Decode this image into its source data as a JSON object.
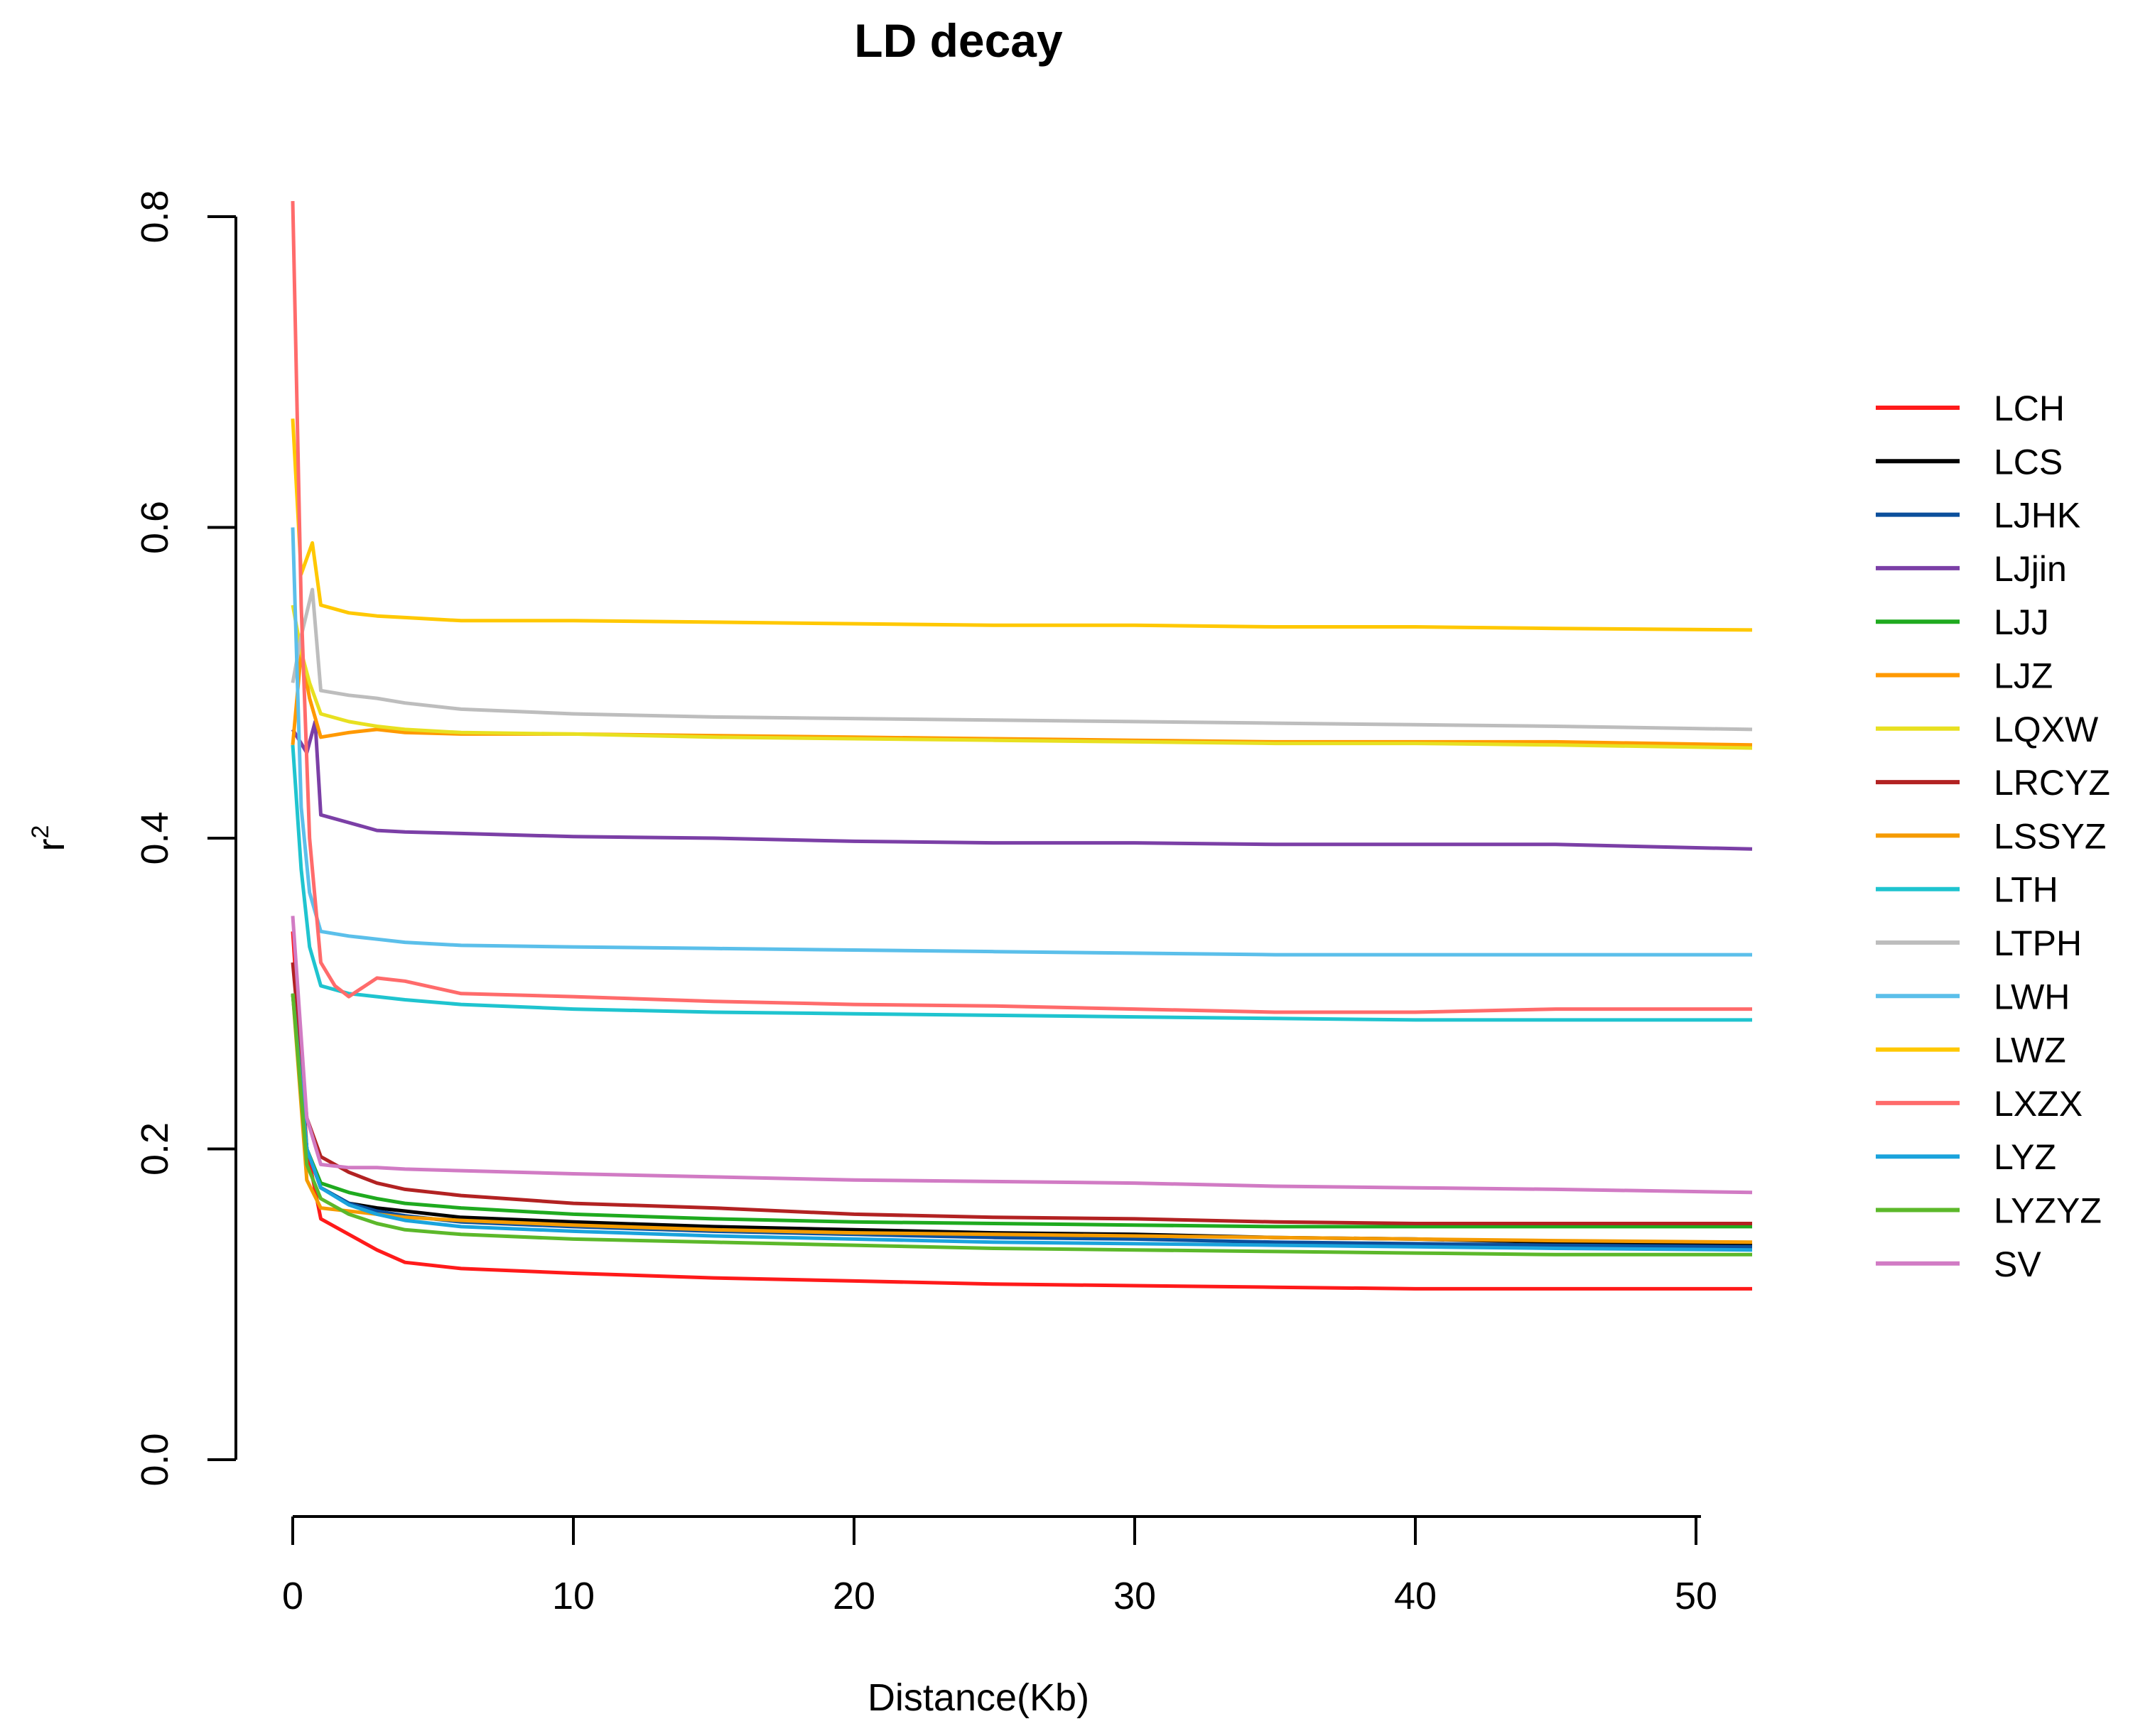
{
  "chart_data": {
    "type": "line",
    "title": "LD decay",
    "xlabel": "Distance(Kb)",
    "ylabel": "r",
    "ylabel_superscript": "2",
    "xlim": [
      0,
      52
    ],
    "ylim": [
      0,
      0.8
    ],
    "xticks": [
      0,
      10,
      20,
      30,
      40,
      50
    ],
    "yticks": [
      0.0,
      0.2,
      0.4,
      0.6,
      0.8
    ],
    "xtick_labels": [
      "0",
      "10",
      "20",
      "30",
      "40",
      "50"
    ],
    "ytick_labels": [
      "0.0",
      "0.2",
      "0.4",
      "0.6",
      "0.8"
    ],
    "legend_position": "right",
    "series": [
      {
        "name": "LCH",
        "color": "#ff1a1a",
        "x": [
          0,
          0.5,
          1,
          2,
          3,
          4,
          6,
          10,
          15,
          20,
          25,
          30,
          35,
          40,
          45,
          52
        ],
        "y": [
          0.34,
          0.2,
          0.155,
          0.145,
          0.135,
          0.127,
          0.123,
          0.12,
          0.117,
          0.115,
          0.113,
          0.112,
          0.111,
          0.11,
          0.11,
          0.11
        ]
      },
      {
        "name": "LCS",
        "color": "#000000",
        "x": [
          0,
          0.5,
          1,
          2,
          3,
          4,
          6,
          10,
          15,
          20,
          25,
          30,
          35,
          40,
          45,
          52
        ],
        "y": [
          0.3,
          0.2,
          0.175,
          0.165,
          0.162,
          0.16,
          0.156,
          0.153,
          0.15,
          0.148,
          0.146,
          0.145,
          0.143,
          0.142,
          0.14,
          0.138
        ]
      },
      {
        "name": "LJHK",
        "color": "#0b4f9c",
        "x": [
          0,
          0.5,
          1,
          2,
          3,
          4,
          6,
          10,
          15,
          20,
          25,
          30,
          35,
          40,
          45,
          52
        ],
        "y": [
          0.3,
          0.2,
          0.175,
          0.165,
          0.16,
          0.157,
          0.153,
          0.15,
          0.147,
          0.145,
          0.143,
          0.142,
          0.14,
          0.139,
          0.138,
          0.137
        ]
      },
      {
        "name": "LJjin",
        "color": "#7b3fa6",
        "x": [
          0,
          0.5,
          0.8,
          1,
          2,
          3,
          4,
          6,
          10,
          15,
          20,
          25,
          30,
          35,
          40,
          45,
          52
        ],
        "y": [
          0.47,
          0.455,
          0.475,
          0.415,
          0.41,
          0.405,
          0.404,
          0.403,
          0.401,
          0.4,
          0.398,
          0.397,
          0.397,
          0.396,
          0.396,
          0.396,
          0.393
        ]
      },
      {
        "name": "LJJ",
        "color": "#1faa1f",
        "x": [
          0,
          0.5,
          1,
          2,
          3,
          4,
          6,
          10,
          15,
          20,
          25,
          30,
          35,
          40,
          45,
          52
        ],
        "y": [
          0.3,
          0.2,
          0.178,
          0.172,
          0.168,
          0.165,
          0.162,
          0.158,
          0.155,
          0.153,
          0.152,
          0.151,
          0.15,
          0.15,
          0.15,
          0.15
        ]
      },
      {
        "name": "LJZ",
        "color": "#ff9900",
        "x": [
          0,
          0.3,
          0.6,
          1,
          2,
          3,
          4,
          6,
          10,
          15,
          20,
          25,
          30,
          35,
          40,
          45,
          52
        ],
        "y": [
          0.46,
          0.52,
          0.49,
          0.465,
          0.468,
          0.47,
          0.468,
          0.467,
          0.467,
          0.466,
          0.465,
          0.464,
          0.463,
          0.462,
          0.462,
          0.462,
          0.46
        ]
      },
      {
        "name": "LQXW",
        "color": "#e8e020",
        "x": [
          0,
          0.3,
          0.6,
          1,
          2,
          3,
          4,
          6,
          10,
          15,
          20,
          25,
          30,
          35,
          40,
          45,
          52
        ],
        "y": [
          0.55,
          0.52,
          0.5,
          0.48,
          0.475,
          0.472,
          0.47,
          0.468,
          0.467,
          0.465,
          0.464,
          0.463,
          0.462,
          0.461,
          0.461,
          0.46,
          0.458
        ]
      },
      {
        "name": "LRCYZ",
        "color": "#b22222",
        "x": [
          0,
          0.5,
          1,
          2,
          3,
          4,
          6,
          10,
          15,
          20,
          25,
          30,
          35,
          40,
          45,
          52
        ],
        "y": [
          0.32,
          0.22,
          0.195,
          0.185,
          0.178,
          0.174,
          0.17,
          0.165,
          0.162,
          0.158,
          0.156,
          0.155,
          0.153,
          0.152,
          0.152,
          0.152
        ]
      },
      {
        "name": "LSSYZ",
        "color": "#f59b00",
        "x": [
          0,
          0.5,
          1,
          2,
          3,
          4,
          6,
          10,
          15,
          20,
          25,
          30,
          35,
          40,
          45,
          52
        ],
        "y": [
          0.3,
          0.18,
          0.162,
          0.16,
          0.158,
          0.156,
          0.154,
          0.151,
          0.148,
          0.146,
          0.145,
          0.144,
          0.143,
          0.142,
          0.141,
          0.14
        ]
      },
      {
        "name": "LTH",
        "color": "#1fc4cf",
        "x": [
          0,
          0.3,
          0.6,
          1,
          2,
          3,
          4,
          6,
          10,
          15,
          20,
          25,
          30,
          35,
          40,
          45,
          52
        ],
        "y": [
          0.46,
          0.38,
          0.33,
          0.305,
          0.3,
          0.298,
          0.296,
          0.293,
          0.29,
          0.288,
          0.287,
          0.286,
          0.285,
          0.284,
          0.283,
          0.283,
          0.283
        ]
      },
      {
        "name": "LTPH",
        "color": "#bdbdbd",
        "x": [
          0,
          0.3,
          0.7,
          1,
          2,
          3,
          4,
          6,
          10,
          15,
          20,
          25,
          30,
          35,
          40,
          45,
          52
        ],
        "y": [
          0.5,
          0.53,
          0.56,
          0.495,
          0.492,
          0.49,
          0.487,
          0.483,
          0.48,
          0.478,
          0.477,
          0.476,
          0.475,
          0.474,
          0.473,
          0.472,
          0.47
        ]
      },
      {
        "name": "LWH",
        "color": "#5bbfea",
        "x": [
          0,
          0.3,
          0.6,
          1,
          2,
          3,
          4,
          6,
          10,
          15,
          20,
          25,
          30,
          35,
          40,
          45,
          52
        ],
        "y": [
          0.6,
          0.42,
          0.365,
          0.34,
          0.337,
          0.335,
          0.333,
          0.331,
          0.33,
          0.329,
          0.328,
          0.327,
          0.326,
          0.325,
          0.325,
          0.325,
          0.325
        ]
      },
      {
        "name": "LWZ",
        "color": "#ffc800",
        "x": [
          0,
          0.3,
          0.7,
          1,
          2,
          3,
          4,
          6,
          10,
          15,
          20,
          25,
          30,
          35,
          40,
          45,
          52
        ],
        "y": [
          0.67,
          0.57,
          0.59,
          0.55,
          0.545,
          0.543,
          0.542,
          0.54,
          0.54,
          0.539,
          0.538,
          0.537,
          0.537,
          0.536,
          0.536,
          0.535,
          0.534
        ]
      },
      {
        "name": "LXZX",
        "color": "#ff6b6b",
        "x": [
          0,
          0.3,
          0.6,
          1,
          1.5,
          2,
          3,
          4,
          6,
          10,
          15,
          20,
          25,
          30,
          35,
          40,
          45,
          52
        ],
        "y": [
          0.81,
          0.55,
          0.4,
          0.32,
          0.305,
          0.298,
          0.31,
          0.308,
          0.3,
          0.298,
          0.295,
          0.293,
          0.292,
          0.29,
          0.288,
          0.288,
          0.29,
          0.29
        ]
      },
      {
        "name": "LYZ",
        "color": "#1aa3dc",
        "x": [
          0,
          0.5,
          1,
          2,
          3,
          4,
          6,
          10,
          15,
          20,
          25,
          30,
          35,
          40,
          45,
          52
        ],
        "y": [
          0.3,
          0.2,
          0.175,
          0.164,
          0.158,
          0.154,
          0.15,
          0.147,
          0.144,
          0.142,
          0.14,
          0.139,
          0.138,
          0.137,
          0.136,
          0.135
        ]
      },
      {
        "name": "LYZYZ",
        "color": "#5cb82a",
        "x": [
          0,
          0.5,
          1,
          2,
          3,
          4,
          6,
          10,
          15,
          20,
          25,
          30,
          35,
          40,
          45,
          52
        ],
        "y": [
          0.3,
          0.19,
          0.168,
          0.158,
          0.152,
          0.148,
          0.145,
          0.142,
          0.14,
          0.138,
          0.136,
          0.135,
          0.134,
          0.133,
          0.132,
          0.132
        ]
      },
      {
        "name": "SV",
        "color": "#d17bc4",
        "x": [
          0,
          0.5,
          1,
          2,
          3,
          4,
          6,
          10,
          15,
          20,
          25,
          30,
          35,
          40,
          45,
          52
        ],
        "y": [
          0.35,
          0.22,
          0.19,
          0.188,
          0.188,
          0.187,
          0.186,
          0.184,
          0.182,
          0.18,
          0.179,
          0.178,
          0.176,
          0.175,
          0.174,
          0.172
        ]
      }
    ]
  }
}
